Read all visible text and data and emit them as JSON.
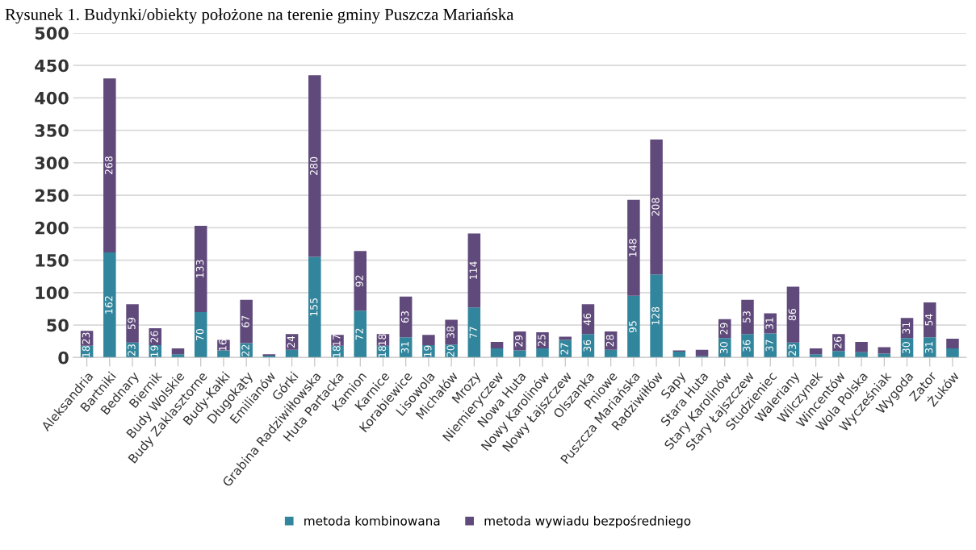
{
  "chart_data": {
    "type": "bar",
    "title": "Rysunek 1. Budynki/obiekty położone na terenie gminy Puszcza Mariańska",
    "categories": [
      "Aleksandria",
      "Bartniki",
      "Bednary",
      "Biernik",
      "Budy Wolskie",
      "Budy Zaklasztorne",
      "Budy-Kałki",
      "Długokąty",
      "Emilianów",
      "Górki",
      "Grabina Radziwiłłowska",
      "Huta Partacka",
      "Kamion",
      "Karnice",
      "Korabiewice",
      "Lisowola",
      "Michałów",
      "Mrozy",
      "Niemieryczew",
      "Nowa Huta",
      "Nowy Karolinów",
      "Nowy Łajszczew",
      "Olszanka",
      "Pniowe",
      "Puszcza Mariańska",
      "Radziwiłłów",
      "Sapy",
      "Stara Huta",
      "Stary Karolinów",
      "Stary Łajszczew",
      "Studzieniec",
      "Waleriany",
      "Wilczynek",
      "Wincentów",
      "Wola Polska",
      "Wycześniak",
      "Wygoda",
      "Zator",
      "Żuków"
    ],
    "stacked": true,
    "series": [
      {
        "name": "metoda kombinowana",
        "color": "#31859c",
        "values": [
          18,
          162,
          23,
          19,
          5,
          70,
          11,
          22,
          3,
          12,
          155,
          18,
          72,
          18,
          31,
          19,
          20,
          77,
          14,
          11,
          14,
          27,
          36,
          12,
          95,
          128,
          9,
          2,
          30,
          36,
          37,
          23,
          5,
          10,
          8,
          6,
          30,
          31,
          14
        ],
        "value_labels": [
          "18",
          "162",
          "23",
          "19",
          null,
          "70",
          null,
          "22",
          null,
          null,
          "155",
          "18",
          "72",
          "18",
          "31",
          "19",
          "20",
          "77",
          null,
          null,
          null,
          "27",
          "36",
          null,
          "95",
          "128",
          null,
          null,
          "30",
          "36",
          "37",
          "23",
          null,
          null,
          null,
          null,
          "30",
          "31",
          null
        ]
      },
      {
        "name": "metoda wywiadu bezpośredniego",
        "color": "#604a7b",
        "values": [
          23,
          268,
          59,
          26,
          9,
          133,
          16,
          67,
          2,
          24,
          280,
          17,
          92,
          18,
          63,
          16,
          38,
          114,
          10,
          29,
          25,
          5,
          46,
          28,
          148,
          208,
          2,
          10,
          29,
          53,
          31,
          86,
          9,
          26,
          16,
          10,
          31,
          54,
          15
        ],
        "value_labels": [
          "23",
          "268",
          "59",
          "26",
          null,
          "133",
          "16",
          "67",
          null,
          "24",
          "280",
          "17",
          "92",
          "18",
          "63",
          null,
          "38",
          "114",
          null,
          "29",
          "25",
          null,
          "46",
          "28",
          "148",
          "208",
          null,
          null,
          "29",
          "53",
          "31",
          "86",
          null,
          "26",
          null,
          null,
          "31",
          "54",
          null
        ]
      }
    ],
    "ylim": [
      0,
      500
    ],
    "yticks": [
      0,
      50,
      100,
      150,
      200,
      250,
      300,
      350,
      400,
      450,
      500
    ],
    "grid": "y",
    "legend": "bottom"
  }
}
